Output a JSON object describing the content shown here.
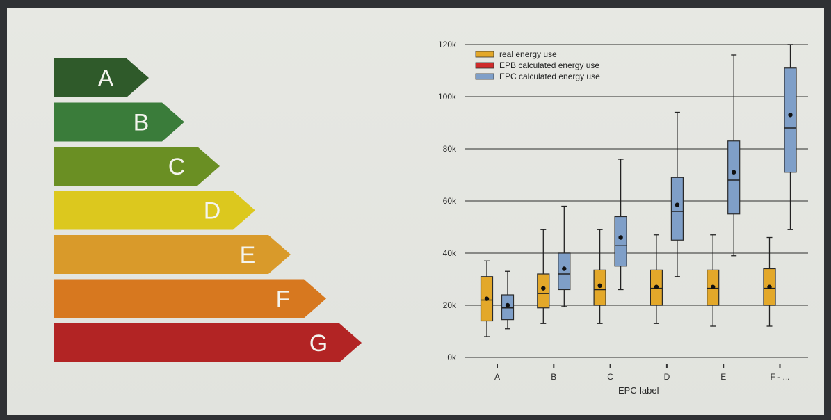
{
  "epc_scale": {
    "bars": [
      {
        "label": "A",
        "color": "#2f5a2a"
      },
      {
        "label": "B",
        "color": "#3a7c3a"
      },
      {
        "label": "C",
        "color": "#6a8f23"
      },
      {
        "label": "D",
        "color": "#dcc81e"
      },
      {
        "label": "E",
        "color": "#d99a2a"
      },
      {
        "label": "F",
        "color": "#d7781f"
      },
      {
        "label": "G",
        "color": "#b22424"
      }
    ]
  },
  "chart_data": {
    "type": "box",
    "xlabel": "EPC-label",
    "ylabel": "",
    "ylim": [
      0,
      120000
    ],
    "yticks": [
      0,
      20000,
      40000,
      60000,
      80000,
      100000,
      120000
    ],
    "ytick_labels": [
      "0k",
      "20k",
      "40k",
      "60k",
      "80k",
      "100k",
      "120k"
    ],
    "grid": true,
    "legend_position": "top-left",
    "categories": [
      "A",
      "B",
      "C",
      "D",
      "E",
      "F - ..."
    ],
    "series": [
      {
        "name": "real energy use",
        "color": "#e3a82a",
        "boxes": [
          {
            "min": 8000,
            "q1": 14000,
            "median": 22000,
            "q3": 31000,
            "max": 37000,
            "mean": 22500
          },
          {
            "min": 13000,
            "q1": 19000,
            "median": 24500,
            "q3": 32000,
            "max": 49000,
            "mean": 26500
          },
          {
            "min": 13000,
            "q1": 20000,
            "median": 26000,
            "q3": 33500,
            "max": 49000,
            "mean": 27500
          },
          {
            "min": 13000,
            "q1": 20000,
            "median": 26500,
            "q3": 33500,
            "max": 47000,
            "mean": 27000
          },
          {
            "min": 12000,
            "q1": 20000,
            "median": 26500,
            "q3": 33500,
            "max": 47000,
            "mean": 27000
          },
          {
            "min": 12000,
            "q1": 20000,
            "median": 26500,
            "q3": 34000,
            "max": 46000,
            "mean": 27000
          }
        ]
      },
      {
        "name": "EPB calculated energy use",
        "color": "#cf2b2b",
        "boxes": []
      },
      {
        "name": "EPC calculated energy use",
        "color": "#7f9fc8",
        "boxes": [
          {
            "min": 11000,
            "q1": 14500,
            "median": 19000,
            "q3": 24000,
            "max": 33000,
            "mean": 20000
          },
          {
            "min": 19500,
            "q1": 26000,
            "median": 32000,
            "q3": 40000,
            "max": 58000,
            "mean": 34000
          },
          {
            "min": 26000,
            "q1": 35000,
            "median": 43000,
            "q3": 54000,
            "max": 76000,
            "mean": 46000
          },
          {
            "min": 31000,
            "q1": 45000,
            "median": 56000,
            "q3": 69000,
            "max": 94000,
            "mean": 58500
          },
          {
            "min": 39000,
            "q1": 55000,
            "median": 68000,
            "q3": 83000,
            "max": 116000,
            "mean": 71000
          },
          {
            "min": 49000,
            "q1": 71000,
            "median": 88000,
            "q3": 111000,
            "max": 120000,
            "mean": 93000
          }
        ]
      }
    ]
  }
}
